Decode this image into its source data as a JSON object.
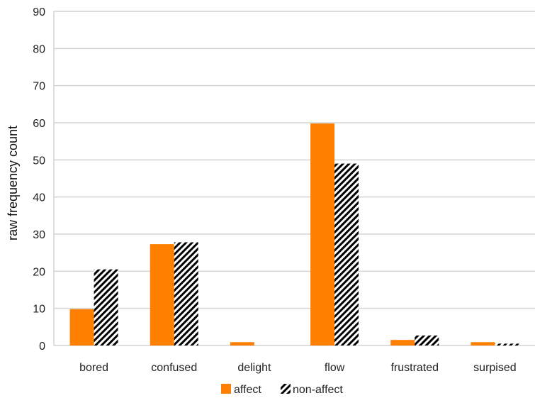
{
  "chart_data": {
    "type": "bar",
    "title": "",
    "xlabel": "",
    "ylabel": "raw frequency count",
    "categories": [
      "bored",
      "confused",
      "delight",
      "flow",
      "frustrated",
      "surpised"
    ],
    "series": [
      {
        "name": "affect",
        "values": [
          9.8,
          27.3,
          0.9,
          59.8,
          1.5,
          0.9
        ],
        "color": "#ff7f00",
        "pattern": "solid"
      },
      {
        "name": "non-affect",
        "values": [
          20.5,
          27.8,
          0,
          49.0,
          2.7,
          0.5
        ],
        "color": "#000000",
        "pattern": "diagonal-hatch"
      }
    ],
    "ylim": [
      0,
      90
    ],
    "yticks": [
      0,
      10,
      20,
      30,
      40,
      50,
      60,
      70,
      80,
      90
    ],
    "grid": true,
    "legend": "bottom"
  }
}
